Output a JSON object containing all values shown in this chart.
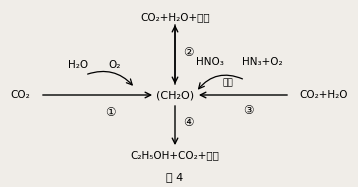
{
  "bg_color": "#f0ede8",
  "center_label": "(CH₂O)",
  "top_label": "CO₂+H₂O+能量",
  "bottom_label": "C₂H₅OH+CO₂+能量",
  "left_label": "CO₂",
  "right_label": "CO₂+H₂O",
  "h2o_label": "H₂O",
  "o2_label": "O₂",
  "hno3_label": "HNO₃",
  "hn3_label": "HN₃+O₂",
  "circle1": "①",
  "circle2": "②",
  "circle3": "③",
  "circle4": "④",
  "energy_label": "能量",
  "fig_label": "图 4",
  "font_size": 7.5
}
